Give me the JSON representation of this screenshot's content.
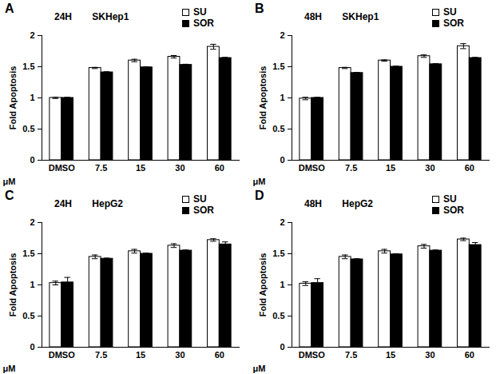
{
  "chart_data": [
    {
      "type": "bar",
      "title": "24H SKHep1",
      "annotations": [
        "A"
      ],
      "x_label": "μM",
      "y_label": "Fold Apoptosis",
      "categories": [
        "DMSO",
        "7.5",
        "15",
        "30",
        "60"
      ],
      "series": [
        {
          "name": "SU",
          "color": "#ffffff",
          "values": [
            1.0,
            1.48,
            1.6,
            1.66,
            1.82
          ],
          "errors": [
            0.01,
            0.01,
            0.02,
            0.02,
            0.04
          ]
        },
        {
          "name": "SOR",
          "color": "#000000",
          "values": [
            1.0,
            1.41,
            1.49,
            1.53,
            1.64
          ],
          "errors": [
            0.01,
            0.01,
            0.01,
            0.01,
            0.01
          ]
        }
      ],
      "ylim": [
        0,
        2
      ],
      "yticks": [
        0,
        0.5,
        1,
        1.5,
        2
      ],
      "grid": false,
      "legend": "top-right"
    },
    {
      "type": "bar",
      "title": "48H SKHep1",
      "annotations": [
        "B"
      ],
      "x_label": "μM",
      "y_label": "Fold Apoptosis",
      "categories": [
        "DMSO",
        "7.5",
        "15",
        "30",
        "60"
      ],
      "series": [
        {
          "name": "SU",
          "color": "#ffffff",
          "values": [
            0.99,
            1.48,
            1.6,
            1.67,
            1.83
          ],
          "errors": [
            0.02,
            0.01,
            0.01,
            0.02,
            0.04
          ]
        },
        {
          "name": "SOR",
          "color": "#000000",
          "values": [
            1.0,
            1.4,
            1.5,
            1.54,
            1.64
          ],
          "errors": [
            0.01,
            0.01,
            0.01,
            0.01,
            0.01
          ]
        }
      ],
      "ylim": [
        0,
        2
      ],
      "yticks": [
        0,
        0.5,
        1,
        1.5,
        2
      ],
      "grid": false,
      "legend": "top-right"
    },
    {
      "type": "bar",
      "title": "24H HepG2",
      "annotations": [
        "C"
      ],
      "x_label": "μM",
      "y_label": "Fold Apoptosis",
      "categories": [
        "DMSO",
        "7.5",
        "15",
        "30",
        "60"
      ],
      "series": [
        {
          "name": "SU",
          "color": "#ffffff",
          "values": [
            1.03,
            1.45,
            1.54,
            1.63,
            1.72
          ],
          "errors": [
            0.03,
            0.03,
            0.03,
            0.03,
            0.02
          ]
        },
        {
          "name": "SOR",
          "color": "#000000",
          "values": [
            1.04,
            1.42,
            1.5,
            1.55,
            1.65
          ],
          "errors": [
            0.08,
            0.01,
            0.01,
            0.01,
            0.04
          ]
        }
      ],
      "ylim": [
        0,
        2
      ],
      "yticks": [
        0,
        0.5,
        1,
        1.5,
        2
      ],
      "grid": false,
      "legend": "top-right"
    },
    {
      "type": "bar",
      "title": "48H HepG2",
      "annotations": [
        "D"
      ],
      "x_label": "μM",
      "y_label": "Fold Apoptosis",
      "categories": [
        "DMSO",
        "7.5",
        "15",
        "30",
        "60"
      ],
      "series": [
        {
          "name": "SU",
          "color": "#ffffff",
          "values": [
            1.02,
            1.45,
            1.54,
            1.62,
            1.73
          ],
          "errors": [
            0.03,
            0.03,
            0.03,
            0.03,
            0.02
          ]
        },
        {
          "name": "SOR",
          "color": "#000000",
          "values": [
            1.03,
            1.41,
            1.49,
            1.55,
            1.64
          ],
          "errors": [
            0.07,
            0.01,
            0.01,
            0.01,
            0.04
          ]
        }
      ],
      "ylim": [
        0,
        2
      ],
      "yticks": [
        0,
        0.5,
        1,
        1.5,
        2
      ],
      "grid": false,
      "legend": "top-right"
    }
  ]
}
